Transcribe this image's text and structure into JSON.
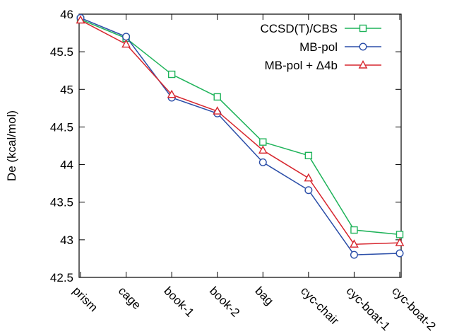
{
  "chart_data": {
    "type": "line",
    "ylabel": "De (kcal/mol)",
    "xlabel": "",
    "title": "",
    "categories": [
      "prism",
      "cage",
      "book-1",
      "book-2",
      "bag",
      "cyc-chair",
      "cyc-boat-1",
      "cyc-boat-2"
    ],
    "ylim": [
      42.5,
      46
    ],
    "yticks": [
      42.5,
      43,
      43.5,
      44,
      44.5,
      45,
      45.5,
      46
    ],
    "ytick_labels": [
      "42.5",
      "43",
      "43.5",
      "44",
      "44.5",
      "45",
      "45.5",
      "46"
    ],
    "grid": false,
    "legend_position": "top-right",
    "series": [
      {
        "name": "CCSD(T)/CBS",
        "color": "#1fb35a",
        "marker": "square",
        "values": [
          45.93,
          45.68,
          45.2,
          44.9,
          44.3,
          44.12,
          43.13,
          43.07
        ]
      },
      {
        "name": "MB-pol",
        "color": "#2b4ea8",
        "marker": "circle",
        "values": [
          45.95,
          45.7,
          44.89,
          44.68,
          44.03,
          43.66,
          42.8,
          42.82
        ]
      },
      {
        "name": "MB-pol + Δ4b",
        "color": "#d7262e",
        "marker": "triangle",
        "values": [
          45.92,
          45.6,
          44.93,
          44.71,
          44.19,
          43.82,
          42.94,
          42.96
        ]
      }
    ]
  }
}
